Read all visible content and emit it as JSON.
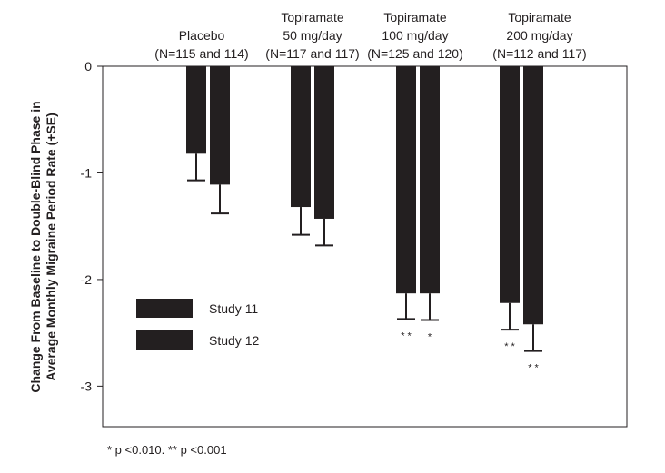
{
  "chart_data": {
    "type": "bar",
    "ylabel": "Change From Baseline to Double-Blind Phase in Average Monthly Migraine Period Rate (+SE)",
    "ylabel_lines": [
      "Change From Baseline to Double-Blind Phase in",
      "Average Monthly Migraine Period Rate (+SE)"
    ],
    "ylim": [
      0,
      -3.38
    ],
    "yticks": [
      0,
      -1,
      -2,
      -3
    ],
    "ytick_labels": [
      "0",
      "-1",
      "-2",
      "-3"
    ],
    "grid": false,
    "legend_placement": "bottom-left",
    "categories": [
      {
        "lines": [
          "Placebo",
          "(N=115 and 114)"
        ]
      },
      {
        "lines": [
          "Topiramate",
          "50 mg/day",
          "(N=117 and 117)"
        ]
      },
      {
        "lines": [
          "Topiramate",
          "100 mg/day",
          "(N=125 and 120)"
        ]
      },
      {
        "lines": [
          "Topiramate",
          "200 mg/day",
          "(N=112 and 117)"
        ]
      }
    ],
    "series": [
      {
        "name": "Study 11",
        "values": [
          -0.82,
          -1.32,
          -2.13,
          -2.22
        ],
        "se": [
          0.25,
          0.26,
          0.24,
          0.25
        ],
        "annotations": [
          "",
          "",
          "* *",
          "* *"
        ],
        "color": "#231f20"
      },
      {
        "name": "Study 12",
        "values": [
          -1.11,
          -1.43,
          -2.13,
          -2.42
        ],
        "se": [
          0.27,
          0.25,
          0.25,
          0.25
        ],
        "annotations": [
          "",
          "",
          "*",
          "* *"
        ],
        "color": "#231f20"
      }
    ],
    "footnote": "* p <0.010. ** p <0.001"
  }
}
